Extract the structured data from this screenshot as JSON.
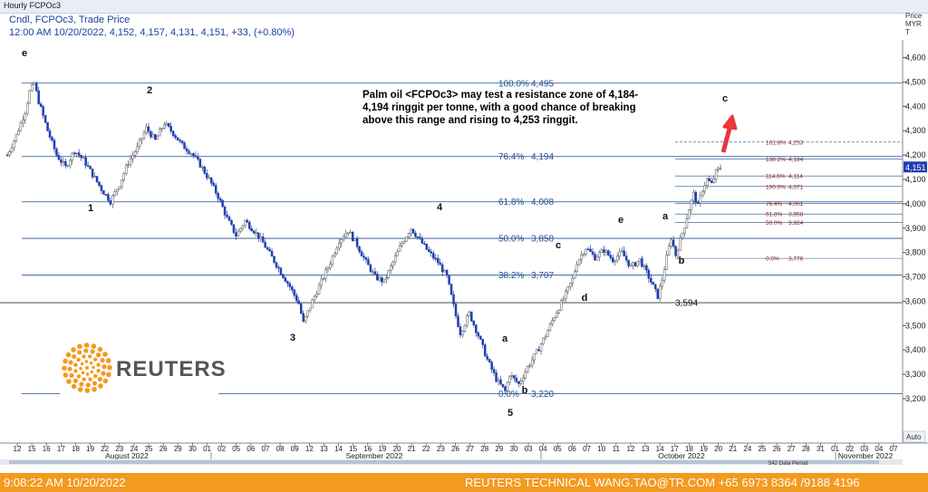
{
  "window": {
    "title": "Hourly FCPOc3"
  },
  "header": {
    "line1": "Cndl, FCPOc3, Trade Price",
    "line2": "12:00 AM 10/20/2022, 4,152, 4,157, 4,131, 4,151, +33, (+0.80%)"
  },
  "annotation": "Palm oil <FCPOc3> may test a resistance zone of 4,184-4,194 ringgit per tonne, with a good chance of breaking above this range and rising to 4,253 ringgit.",
  "footer": {
    "timestamp": "9:08:22 AM 10/20/2022",
    "credit": "REUTERS TECHNICAL  WANG.TAO@TR.COM  +65 6973 8364 /9188 4196"
  },
  "logo": {
    "text": "REUTERS",
    "color": "#f39a1f"
  },
  "colors": {
    "candle": "#1f3fb0",
    "fib_main": "#1f4f8f",
    "fib_small": "#8b1a1a",
    "arrow": "#e8383d",
    "footer_bg": "#f39a1f",
    "price_tag": "#1f3fb0"
  },
  "chart_data": {
    "type": "candlestick",
    "axis": {
      "y_label": "Price MYR T",
      "ylim": [
        3160,
        4620
      ],
      "y_ticks": [
        3200,
        3300,
        3400,
        3500,
        3600,
        3700,
        3800,
        3900,
        4000,
        4100,
        4200,
        4300,
        4400,
        4500,
        4600
      ],
      "y_tick_labels": [
        "3,200",
        "3,300",
        "3,400",
        "3,500",
        "3,600",
        "3,700",
        "3,800",
        "3,900",
        "4,000",
        "4,100",
        "4,200",
        "4,300",
        "4,400",
        "4,500",
        "4,600"
      ],
      "x_day_labels": [
        "12",
        "15",
        "16",
        "17",
        "18",
        "19",
        "22",
        "23",
        "24",
        "25",
        "26",
        "29",
        "30",
        "01",
        "02",
        "05",
        "06",
        "07",
        "08",
        "09",
        "12",
        "13",
        "14",
        "15",
        "16",
        "19",
        "20",
        "21",
        "22",
        "23",
        "26",
        "27",
        "28",
        "29",
        "30",
        "03",
        "04",
        "05",
        "06",
        "07",
        "10",
        "11",
        "12",
        "13",
        "14",
        "17",
        "18",
        "19",
        "20",
        "21",
        "24",
        "25",
        "26",
        "27",
        "28",
        "31",
        "01",
        "02",
        "03",
        "04",
        "07"
      ],
      "months": [
        "August 2022",
        "September 2022",
        "October 2022",
        "November 2022"
      ],
      "zoom_label": "Auto",
      "period_label": "542 Data Period",
      "last_price_tag": "4,151"
    },
    "fib_main": [
      {
        "label": "100.0%",
        "value": "4,495",
        "price": 4495
      },
      {
        "label": "76.4%",
        "value": "4,194",
        "price": 4194
      },
      {
        "label": "61.8%",
        "value": "4,008",
        "price": 4008
      },
      {
        "label": "50.0%",
        "value": "3,858",
        "price": 3858
      },
      {
        "label": "38.2%",
        "value": "3,707",
        "price": 3707
      },
      {
        "label": "0.0%",
        "value": "3,220",
        "price": 3220
      }
    ],
    "fib_small": [
      {
        "label": "161.8%",
        "value": "4,253",
        "price": 4253
      },
      {
        "label": "138.2%",
        "value": "4,184",
        "price": 4184
      },
      {
        "label": "114.6%",
        "value": "4,114",
        "price": 4114
      },
      {
        "label": "100.0%",
        "value": "4,071",
        "price": 4071
      },
      {
        "label": "76.4%",
        "value": "4,001",
        "price": 4001
      },
      {
        "label": "61.8%",
        "value": "3,958",
        "price": 3958
      },
      {
        "label": "50.0%",
        "value": "3,924",
        "price": 3924
      },
      {
        "label": "0.0%",
        "value": "3,776",
        "price": 3776
      }
    ],
    "support": {
      "value": "3,594",
      "price": 3594
    },
    "wave_labels": [
      "e",
      "2",
      "1",
      "3",
      "4",
      "5",
      "a",
      "b",
      "c",
      "d",
      "e",
      "a",
      "b",
      "c"
    ],
    "price_path": [
      [
        0,
        4200
      ],
      [
        2,
        4280
      ],
      [
        4,
        4380
      ],
      [
        5,
        4460
      ],
      [
        6,
        4495
      ],
      [
        7,
        4420
      ],
      [
        9,
        4300
      ],
      [
        11,
        4200
      ],
      [
        13,
        4150
      ],
      [
        15,
        4220
      ],
      [
        17,
        4180
      ],
      [
        19,
        4120
      ],
      [
        21,
        4060
      ],
      [
        23,
        4010
      ],
      [
        25,
        4080
      ],
      [
        27,
        4170
      ],
      [
        29,
        4230
      ],
      [
        31,
        4310
      ],
      [
        33,
        4260
      ],
      [
        35,
        4330
      ],
      [
        37,
        4290
      ],
      [
        39,
        4240
      ],
      [
        41,
        4210
      ],
      [
        43,
        4160
      ],
      [
        45,
        4100
      ],
      [
        47,
        4030
      ],
      [
        49,
        3940
      ],
      [
        51,
        3870
      ],
      [
        53,
        3930
      ],
      [
        55,
        3890
      ],
      [
        57,
        3840
      ],
      [
        59,
        3780
      ],
      [
        61,
        3720
      ],
      [
        63,
        3660
      ],
      [
        65,
        3590
      ],
      [
        66,
        3510
      ],
      [
        68,
        3600
      ],
      [
        70,
        3680
      ],
      [
        72,
        3760
      ],
      [
        74,
        3850
      ],
      [
        76,
        3890
      ],
      [
        78,
        3830
      ],
      [
        80,
        3760
      ],
      [
        82,
        3700
      ],
      [
        84,
        3680
      ],
      [
        86,
        3760
      ],
      [
        88,
        3840
      ],
      [
        90,
        3900
      ],
      [
        92,
        3850
      ],
      [
        94,
        3800
      ],
      [
        96,
        3760
      ],
      [
        98,
        3700
      ],
      [
        99,
        3620
      ],
      [
        100,
        3540
      ],
      [
        101,
        3470
      ],
      [
        103,
        3550
      ],
      [
        105,
        3460
      ],
      [
        107,
        3360
      ],
      [
        109,
        3280
      ],
      [
        111,
        3230
      ],
      [
        112,
        3300
      ],
      [
        114,
        3260
      ],
      [
        116,
        3330
      ],
      [
        118,
        3390
      ],
      [
        120,
        3460
      ],
      [
        122,
        3540
      ],
      [
        124,
        3610
      ],
      [
        126,
        3690
      ],
      [
        127,
        3760
      ],
      [
        129,
        3820
      ],
      [
        131,
        3780
      ],
      [
        133,
        3810
      ],
      [
        135,
        3770
      ],
      [
        137,
        3800
      ],
      [
        139,
        3740
      ],
      [
        141,
        3770
      ],
      [
        143,
        3700
      ],
      [
        145,
        3620
      ],
      [
        146,
        3690
      ],
      [
        147,
        3780
      ],
      [
        148,
        3860
      ],
      [
        149,
        3790
      ],
      [
        150,
        3850
      ],
      [
        151,
        3910
      ],
      [
        152,
        3980
      ],
      [
        153,
        4040
      ],
      [
        154,
        3990
      ],
      [
        155,
        4060
      ],
      [
        156,
        4100
      ],
      [
        157,
        4080
      ],
      [
        158,
        4130
      ],
      [
        159,
        4150
      ]
    ]
  }
}
